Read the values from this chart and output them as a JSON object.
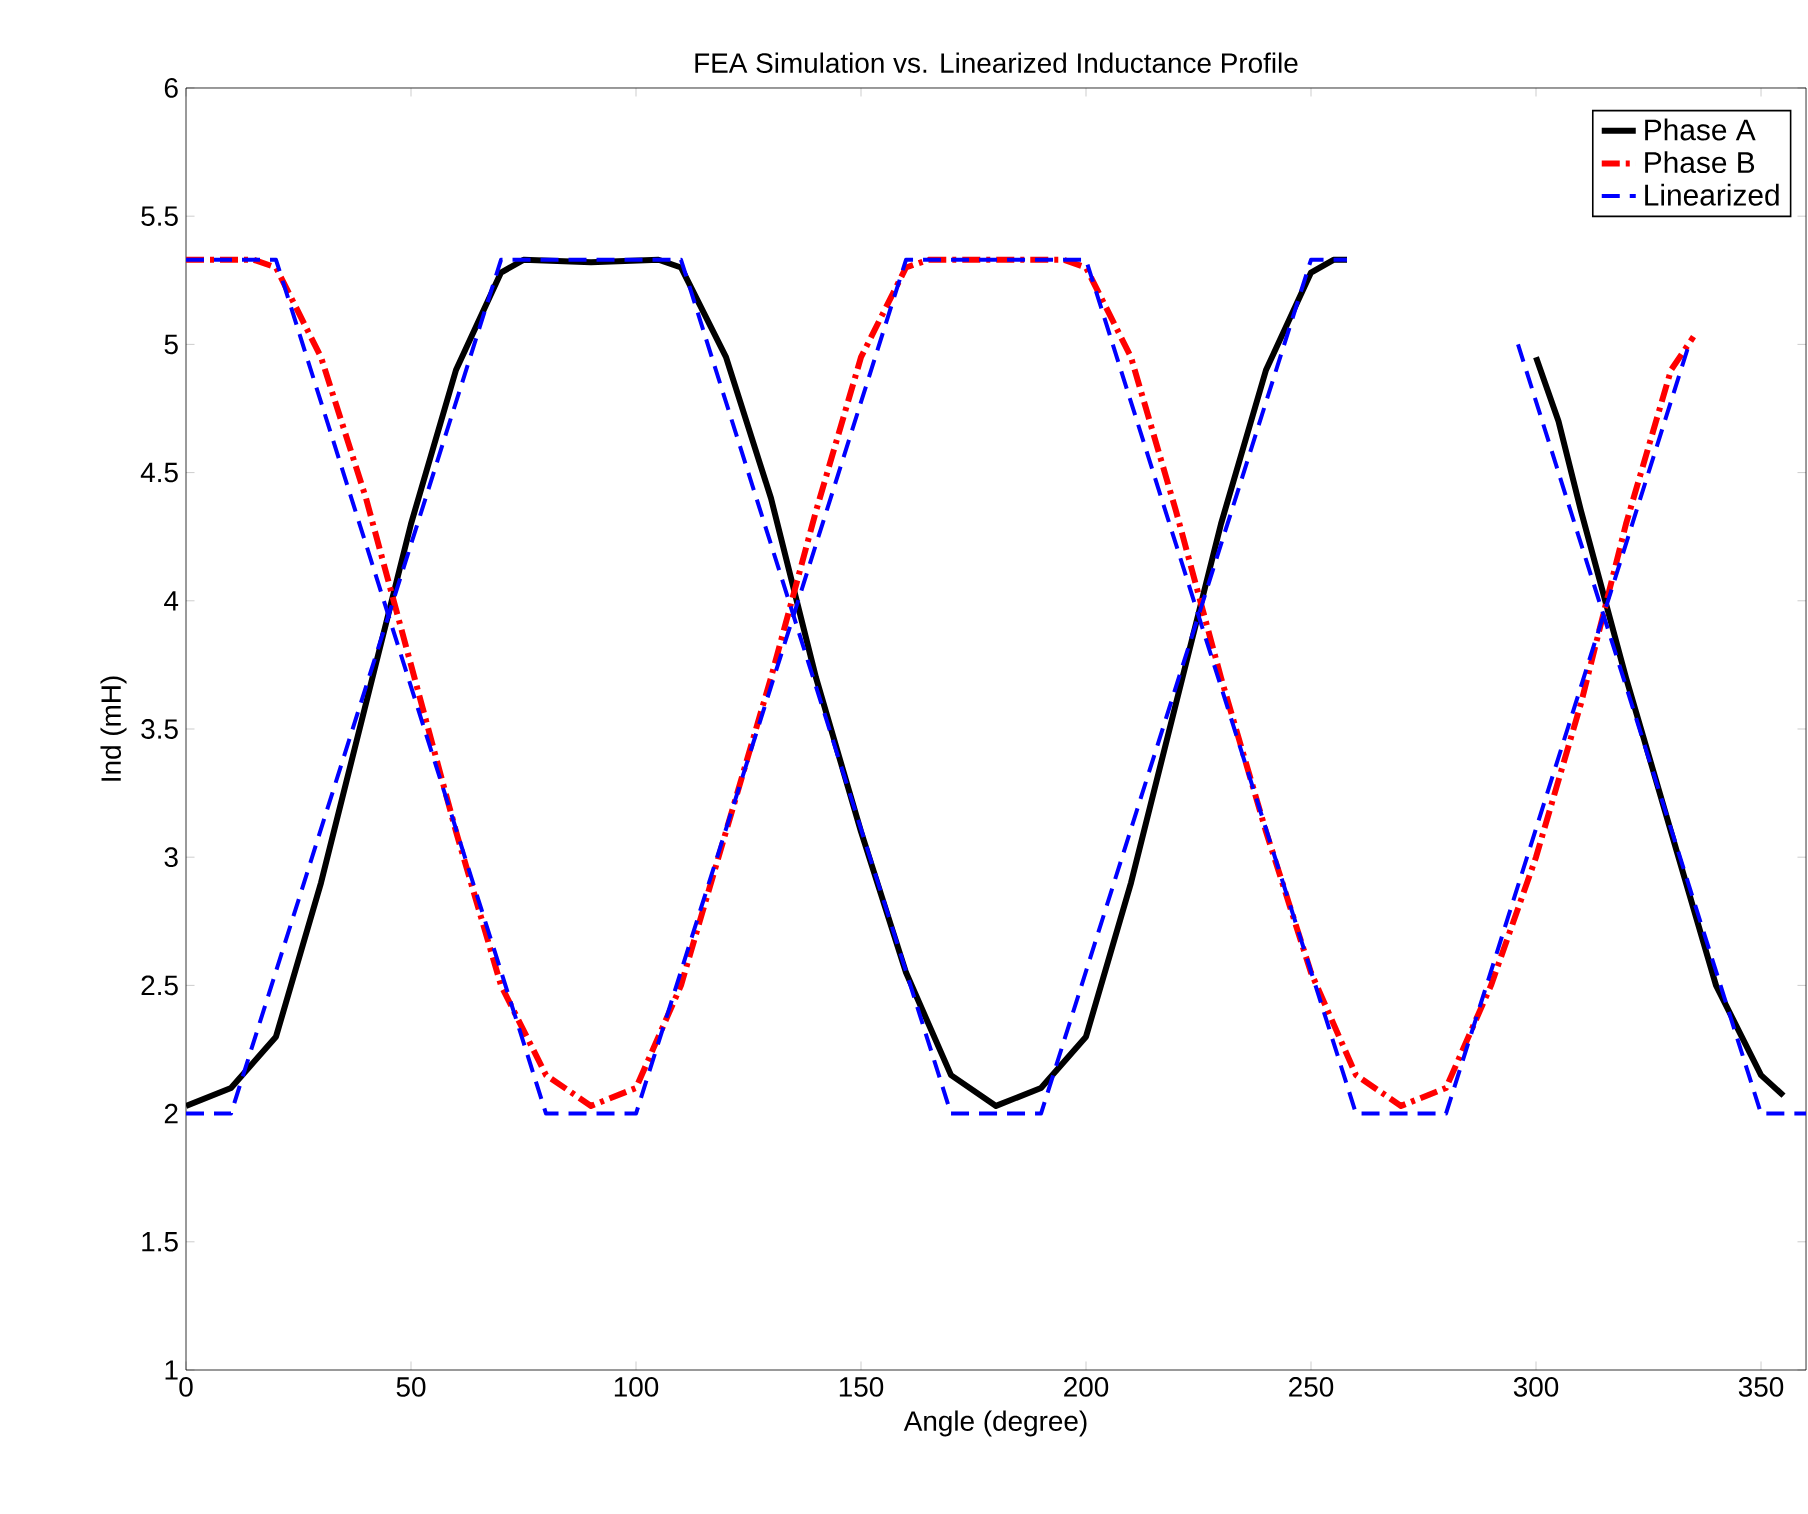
{
  "chart_data": {
    "type": "line",
    "title": "FEA Simulation vs. Linearized Inductance Profile",
    "xlabel": "Angle (degree)",
    "ylabel": "Ind (mH)",
    "xlim": [
      0,
      360
    ],
    "ylim": [
      1,
      6
    ],
    "xticks": [
      0,
      50,
      100,
      150,
      200,
      250,
      300,
      350
    ],
    "yticks": [
      1,
      1.5,
      2,
      2.5,
      3,
      3.5,
      4,
      4.5,
      5,
      5.5,
      6
    ],
    "grid": false,
    "legend": "top right",
    "series": [
      {
        "name": "Phase A",
        "color": "#000000",
        "line_style": "solid",
        "x": [
          0,
          10,
          20,
          30,
          40,
          50,
          60,
          70,
          75,
          90,
          105,
          110,
          120,
          130,
          140,
          150,
          160,
          170,
          180,
          190,
          200,
          210,
          220,
          230,
          240,
          250,
          255,
          258,
          280,
          300,
          305,
          310,
          320,
          330,
          340,
          350,
          355
        ],
        "values": [
          2.03,
          2.1,
          2.3,
          2.9,
          3.6,
          4.3,
          4.9,
          5.28,
          5.33,
          5.32,
          5.33,
          5.3,
          4.95,
          4.4,
          3.7,
          3.1,
          2.55,
          2.15,
          2.03,
          2.1,
          2.3,
          2.9,
          3.6,
          4.3,
          4.9,
          5.28,
          5.33,
          5.33,
          null,
          4.95,
          4.7,
          4.35,
          3.7,
          3.1,
          2.5,
          2.15,
          2.07
        ]
      },
      {
        "name": "Phase B",
        "color": "#ff0000",
        "line_style": "dashdot",
        "x": [
          0,
          15,
          20,
          30,
          40,
          50,
          60,
          70,
          80,
          90,
          100,
          110,
          120,
          130,
          140,
          150,
          160,
          165,
          195,
          200,
          210,
          220,
          230,
          240,
          250,
          260,
          270,
          280,
          290,
          300,
          310,
          320,
          330,
          335
        ],
        "values": [
          5.33,
          5.33,
          5.3,
          4.95,
          4.4,
          3.75,
          3.1,
          2.5,
          2.15,
          2.03,
          2.1,
          2.5,
          3.1,
          3.7,
          4.35,
          4.95,
          5.3,
          5.33,
          5.33,
          5.3,
          4.95,
          4.35,
          3.7,
          3.1,
          2.55,
          2.15,
          2.03,
          2.1,
          2.5,
          3.0,
          3.6,
          4.3,
          4.9,
          5.03
        ]
      },
      {
        "name": "Linearized",
        "color": "#0000ff",
        "line_style": "dashed",
        "x": [
          0,
          10,
          70,
          110,
          170,
          190,
          250,
          258,
          280,
          296,
          350,
          360
        ],
        "values": [
          2,
          2,
          5.33,
          5.33,
          2,
          2,
          5.33,
          5.33,
          null,
          5.0,
          2,
          2
        ]
      },
      {
        "color": "#0000ff",
        "line_style": "dashed",
        "x": [
          0,
          20,
          80,
          100,
          160,
          200,
          260,
          280,
          334
        ],
        "values": [
          5.33,
          5.33,
          2,
          2,
          5.33,
          5.33,
          2,
          2,
          5.0
        ]
      }
    ]
  }
}
